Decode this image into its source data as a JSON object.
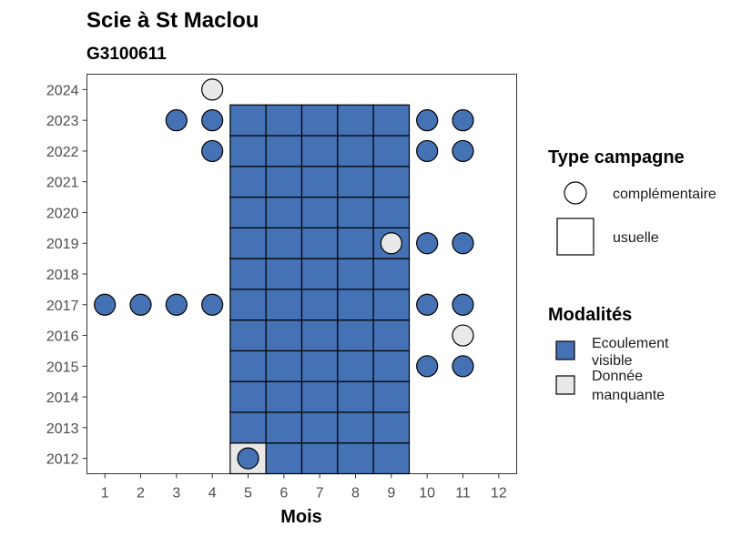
{
  "chart_data": {
    "type": "heatmap",
    "title": "Scie à St Maclou",
    "subtitle": "G3100611",
    "xlabel": "Mois",
    "ylabel": "",
    "x_ticks": [
      1,
      2,
      3,
      4,
      5,
      6,
      7,
      8,
      9,
      10,
      11,
      12
    ],
    "y_ticks": [
      2012,
      2013,
      2014,
      2015,
      2016,
      2017,
      2018,
      2019,
      2020,
      2021,
      2022,
      2023,
      2024
    ],
    "xlim": [
      0.5,
      12.5
    ],
    "ylim": [
      2011.5,
      2024.5
    ],
    "grid": false,
    "colors": {
      "Ecoulement visible": "#4472b4",
      "Donnée manquante": "#e8e8e8"
    },
    "legend_type": {
      "title": "Type campagne",
      "entries": [
        {
          "label": "complémentaire",
          "shape": "circle"
        },
        {
          "label": "usuelle",
          "shape": "square"
        }
      ]
    },
    "legend_modalites": {
      "title": "Modalités",
      "entries": [
        {
          "label_lines": [
            "Ecoulement",
            "visible"
          ],
          "key": "Ecoulement visible"
        },
        {
          "label_lines": [
            "Donnée",
            "manquante"
          ],
          "key": "Donnée manquante"
        }
      ]
    },
    "usuelle": {
      "months": [
        5,
        6,
        7,
        8,
        9
      ],
      "years": [
        2012,
        2013,
        2014,
        2015,
        2016,
        2017,
        2018,
        2019,
        2020,
        2021,
        2022,
        2023
      ],
      "default": "Ecoulement visible",
      "exceptions": [
        {
          "month": 5,
          "year": 2012,
          "modalite": "Donnée manquante"
        }
      ]
    },
    "complementaire": [
      {
        "month": 4,
        "year": 2024,
        "modalite": "Donnée manquante"
      },
      {
        "month": 3,
        "year": 2023,
        "modalite": "Ecoulement visible"
      },
      {
        "month": 4,
        "year": 2023,
        "modalite": "Ecoulement visible"
      },
      {
        "month": 10,
        "year": 2023,
        "modalite": "Ecoulement visible"
      },
      {
        "month": 11,
        "year": 2023,
        "modalite": "Ecoulement visible"
      },
      {
        "month": 4,
        "year": 2022,
        "modalite": "Ecoulement visible"
      },
      {
        "month": 10,
        "year": 2022,
        "modalite": "Ecoulement visible"
      },
      {
        "month": 11,
        "year": 2022,
        "modalite": "Ecoulement visible"
      },
      {
        "month": 9,
        "year": 2019,
        "modalite": "Donnée manquante"
      },
      {
        "month": 10,
        "year": 2019,
        "modalite": "Ecoulement visible"
      },
      {
        "month": 11,
        "year": 2019,
        "modalite": "Ecoulement visible"
      },
      {
        "month": 1,
        "year": 2017,
        "modalite": "Ecoulement visible"
      },
      {
        "month": 2,
        "year": 2017,
        "modalite": "Ecoulement visible"
      },
      {
        "month": 3,
        "year": 2017,
        "modalite": "Ecoulement visible"
      },
      {
        "month": 4,
        "year": 2017,
        "modalite": "Ecoulement visible"
      },
      {
        "month": 10,
        "year": 2017,
        "modalite": "Ecoulement visible"
      },
      {
        "month": 11,
        "year": 2017,
        "modalite": "Ecoulement visible"
      },
      {
        "month": 11,
        "year": 2016,
        "modalite": "Donnée manquante"
      },
      {
        "month": 10,
        "year": 2015,
        "modalite": "Ecoulement visible"
      },
      {
        "month": 11,
        "year": 2015,
        "modalite": "Ecoulement visible"
      },
      {
        "month": 5,
        "year": 2012,
        "modalite": "Ecoulement visible"
      }
    ]
  }
}
